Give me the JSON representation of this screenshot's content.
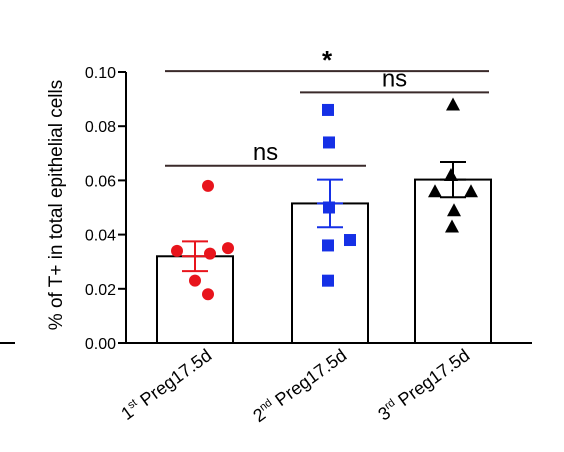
{
  "chart_data": {
    "type": "bar",
    "ylabel": "% of T+ in total epithelial cells",
    "ylim": [
      0,
      0.1
    ],
    "yticks": [
      "0.00",
      "0.02",
      "0.04",
      "0.06",
      "0.08",
      "0.10"
    ],
    "ytick_values": [
      0,
      0.02,
      0.04,
      0.06,
      0.08,
      0.1
    ],
    "categories": [
      {
        "ordinal": "1",
        "suffix": "st",
        "rest": " Preg17.5d"
      },
      {
        "ordinal": "2",
        "suffix": "nd",
        "rest": " Preg17.5d"
      },
      {
        "ordinal": "3",
        "suffix": "rd",
        "rest": " Preg17.5d"
      }
    ],
    "series": [
      {
        "mean": 0.032,
        "sem": 0.0055,
        "color": "#e8141c",
        "marker": "circle",
        "points": [
          0.058,
          0.034,
          0.035,
          0.033,
          0.023,
          0.018
        ]
      },
      {
        "mean": 0.0515,
        "sem": 0.0088,
        "color": "#1530e6",
        "marker": "square",
        "points": [
          0.086,
          0.074,
          0.05,
          0.038,
          0.036,
          0.023
        ]
      },
      {
        "mean": 0.0603,
        "sem": 0.0065,
        "color": "#000000",
        "marker": "triangle",
        "points": [
          0.088,
          0.062,
          0.056,
          0.056,
          0.049,
          0.043
        ]
      }
    ],
    "comparisons": [
      {
        "from": 0,
        "to": 2,
        "label": "*",
        "y": 0.1003
      },
      {
        "from": 1,
        "to": 2,
        "label": "ns",
        "y": 0.0925
      },
      {
        "from": 0,
        "to": 1,
        "label": "ns",
        "y": 0.0654
      }
    ]
  }
}
